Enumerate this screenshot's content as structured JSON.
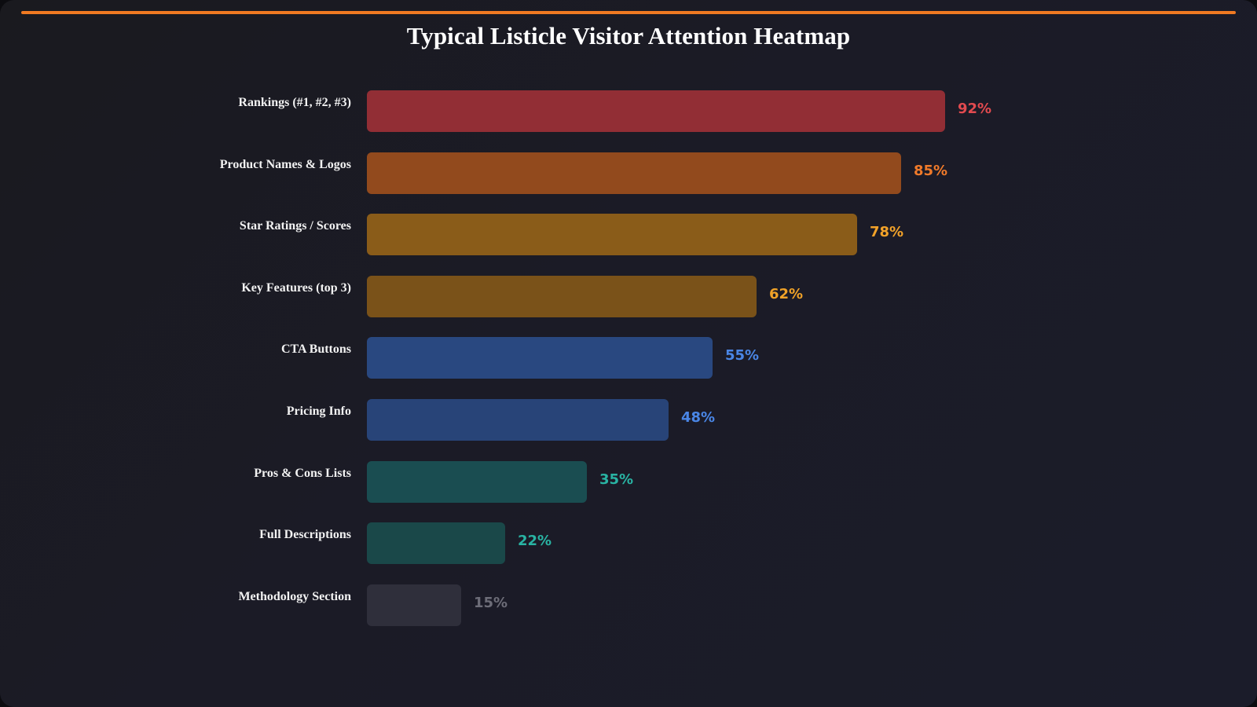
{
  "header": {
    "title": "Typical Listicle Visitor Attention Heatmap",
    "accent_color": "#f07a22"
  },
  "chart_data": {
    "type": "bar",
    "orientation": "horizontal",
    "title": "Typical Listicle Visitor Attention Heatmap",
    "xlabel": "",
    "ylabel": "",
    "xlim": [
      0,
      100
    ],
    "grid": false,
    "legend": null,
    "value_suffix": "%",
    "categories": [
      "Rankings (#1, #2, #3)",
      "Product Names & Logos",
      "Star Ratings / Scores",
      "Key Features (top 3)",
      "CTA Buttons",
      "Pricing Info",
      "Pros & Cons Lists",
      "Full Descriptions",
      "Methodology Section"
    ],
    "values": [
      92,
      85,
      78,
      62,
      55,
      48,
      35,
      22,
      15
    ],
    "bar_colors": [
      "#922e35",
      "#924a1d",
      "#8a5c19",
      "#7a5219",
      "#294880",
      "#284478",
      "#1a4d51",
      "#1a4849",
      "#2f2f3b"
    ],
    "label_colors": [
      "#e24a4f",
      "#f07a2a",
      "#f2a229",
      "#f0a228",
      "#4a86e6",
      "#4a86e6",
      "#29b3a3",
      "#29b3a3",
      "#6d6d78"
    ]
  },
  "rows": [
    {
      "label": "Rankings (#1, #2, #3)",
      "value_text": "92%"
    },
    {
      "label": "Product Names & Logos",
      "value_text": "85%"
    },
    {
      "label": "Star Ratings / Scores",
      "value_text": "78%"
    },
    {
      "label": "Key Features (top 3)",
      "value_text": "62%"
    },
    {
      "label": "CTA Buttons",
      "value_text": "55%"
    },
    {
      "label": "Pricing Info",
      "value_text": "48%"
    },
    {
      "label": "Pros & Cons Lists",
      "value_text": "35%"
    },
    {
      "label": "Full Descriptions",
      "value_text": "22%"
    },
    {
      "label": "Methodology Section",
      "value_text": "15%"
    }
  ]
}
